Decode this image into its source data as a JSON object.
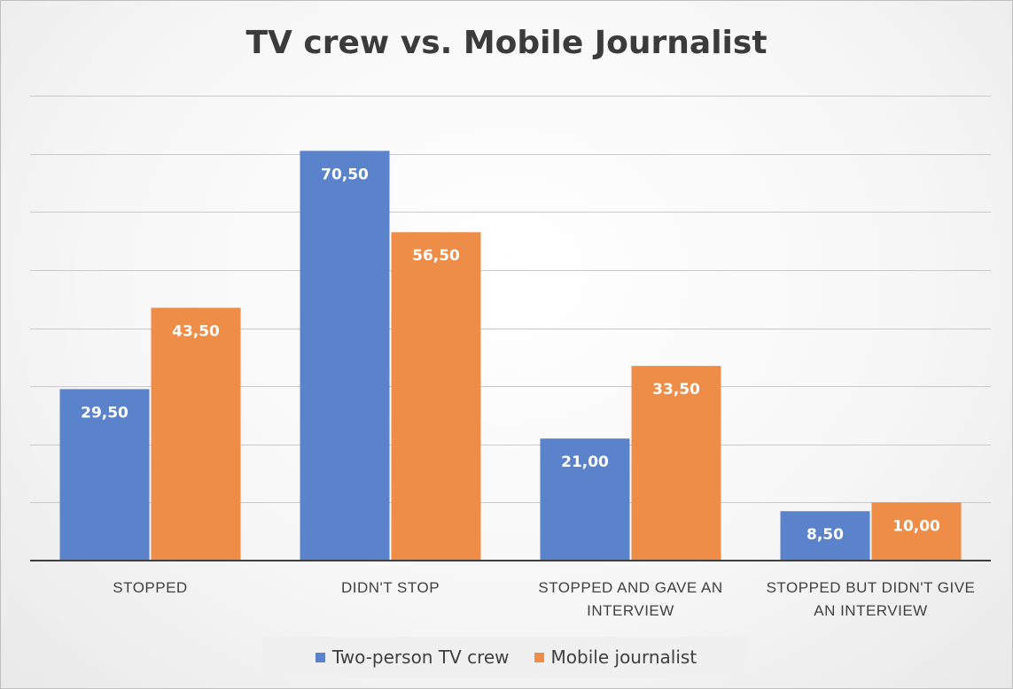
{
  "chart_data": {
    "type": "bar",
    "title": "TV crew vs. Mobile Journalist",
    "categories": [
      [
        "STOPPED"
      ],
      [
        "DIDN'T STOP"
      ],
      [
        "STOPPED AND GAVE AN",
        "INTERVIEW"
      ],
      [
        "STOPPED BUT DIDN'T GIVE",
        "AN INTERVIEW"
      ]
    ],
    "series": [
      {
        "name": "Two-person TV crew",
        "color": "#5b83cc",
        "values": [
          29.5,
          70.5,
          21.0,
          8.5
        ],
        "labels": [
          "29,50",
          "70,50",
          "21,00",
          "8,50"
        ]
      },
      {
        "name": "Mobile journalist",
        "color": "#ed8d48",
        "values": [
          43.5,
          56.5,
          33.5,
          10.0
        ],
        "labels": [
          "43,50",
          "56,50",
          "33,50",
          "10,00"
        ]
      }
    ],
    "ylim": [
      0,
      80
    ],
    "grid": true,
    "legend": "bottom"
  }
}
